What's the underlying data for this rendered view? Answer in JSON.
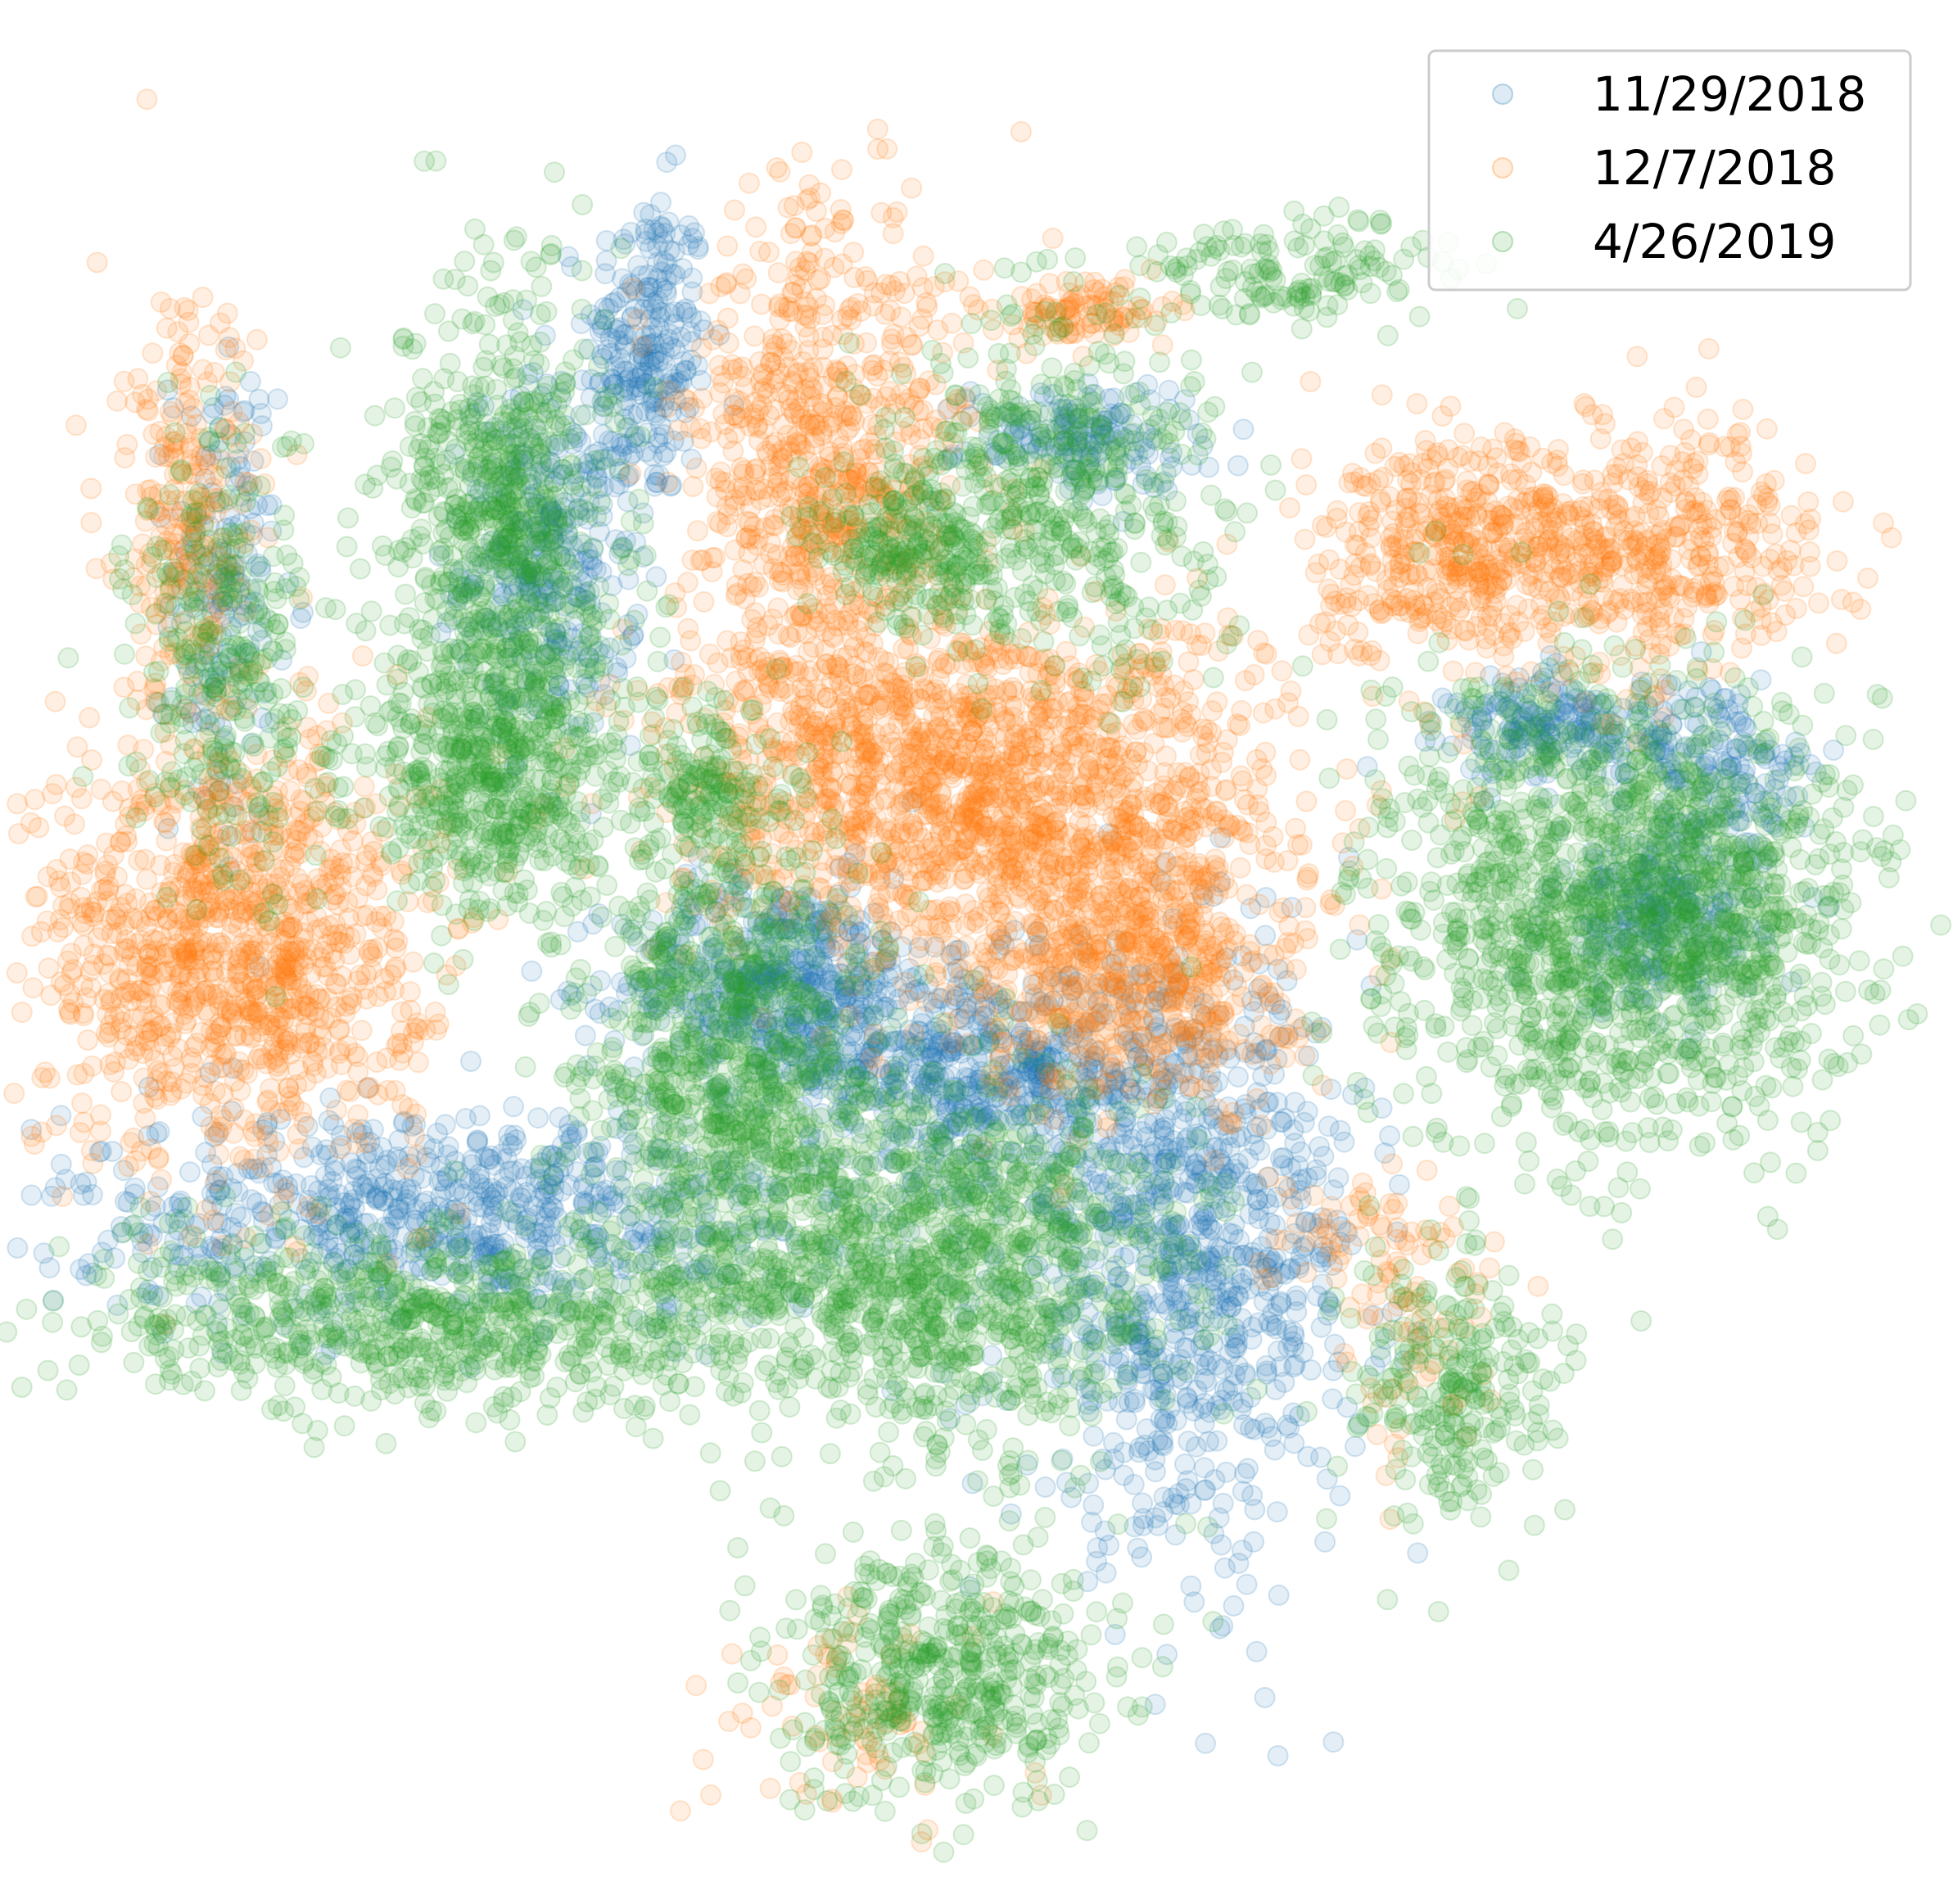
{
  "chart_data": {
    "type": "scatter",
    "title": "",
    "xlabel": "",
    "ylabel": "",
    "axes_visible": false,
    "grid": false,
    "legend_position": "top-right",
    "point_alpha": 0.12,
    "series": [
      {
        "name": "11/29/2018",
        "color": "#1f77b4",
        "clusters": [
          {
            "cx": -0.36,
            "cy": 0.7,
            "sx": 0.035,
            "sy": 0.09,
            "n": 240
          },
          {
            "cx": -0.47,
            "cy": 0.46,
            "sx": 0.05,
            "sy": 0.1,
            "n": 320
          },
          {
            "cx": -0.84,
            "cy": 0.42,
            "sx": 0.03,
            "sy": 0.14,
            "n": 160
          },
          {
            "cx": -0.21,
            "cy": -0.02,
            "sx": 0.09,
            "sy": 0.06,
            "n": 500
          },
          {
            "cx": 0.02,
            "cy": -0.12,
            "sx": 0.1,
            "sy": 0.06,
            "n": 520
          },
          {
            "cx": -0.58,
            "cy": -0.28,
            "sx": 0.22,
            "sy": 0.06,
            "n": 750
          },
          {
            "cx": 0.25,
            "cy": -0.33,
            "sx": 0.1,
            "sy": 0.16,
            "n": 900
          },
          {
            "cx": 0.13,
            "cy": 0.6,
            "sx": 0.07,
            "sy": 0.03,
            "n": 150
          },
          {
            "cx": 0.67,
            "cy": 0.27,
            "sx": 0.06,
            "sy": 0.03,
            "n": 200
          },
          {
            "cx": 0.78,
            "cy": 0.05,
            "sx": 0.06,
            "sy": 0.05,
            "n": 230
          },
          {
            "cx": 0.86,
            "cy": 0.22,
            "sx": 0.05,
            "sy": 0.05,
            "n": 150
          }
        ]
      },
      {
        "name": "12/7/2018",
        "color": "#ff7f0e",
        "clusters": [
          {
            "cx": -0.83,
            "cy": 0.02,
            "sx": 0.11,
            "sy": 0.12,
            "n": 1100
          },
          {
            "cx": 0.02,
            "cy": 0.2,
            "sx": 0.17,
            "sy": 0.1,
            "n": 1500
          },
          {
            "cx": 0.19,
            "cy": 0.0,
            "sx": 0.09,
            "sy": 0.08,
            "n": 600
          },
          {
            "cx": -0.16,
            "cy": 0.55,
            "sx": 0.08,
            "sy": 0.16,
            "n": 800
          },
          {
            "cx": -0.88,
            "cy": 0.48,
            "sx": 0.04,
            "sy": 0.13,
            "n": 260
          },
          {
            "cx": 0.54,
            "cy": 0.47,
            "sx": 0.07,
            "sy": 0.06,
            "n": 350
          },
          {
            "cx": 0.76,
            "cy": 0.47,
            "sx": 0.1,
            "sy": 0.07,
            "n": 500
          },
          {
            "cx": 0.14,
            "cy": 0.74,
            "sx": 0.05,
            "sy": 0.02,
            "n": 100
          },
          {
            "cx": 0.45,
            "cy": -0.3,
            "sx": 0.06,
            "sy": 0.04,
            "n": 60
          },
          {
            "cx": -0.12,
            "cy": -0.85,
            "sx": 0.08,
            "sy": 0.06,
            "n": 80
          },
          {
            "cx": 0.5,
            "cy": -0.41,
            "sx": 0.05,
            "sy": 0.07,
            "n": 60
          }
        ]
      },
      {
        "name": "4/26/2019",
        "color": "#2ca02c",
        "clusters": [
          {
            "cx": -0.52,
            "cy": 0.5,
            "sx": 0.06,
            "sy": 0.14,
            "n": 700
          },
          {
            "cx": -0.53,
            "cy": 0.22,
            "sx": 0.08,
            "sy": 0.08,
            "n": 600
          },
          {
            "cx": -0.84,
            "cy": 0.34,
            "sx": 0.05,
            "sy": 0.12,
            "n": 300
          },
          {
            "cx": -0.27,
            "cy": -0.12,
            "sx": 0.08,
            "sy": 0.14,
            "n": 900
          },
          {
            "cx": -0.02,
            "cy": -0.34,
            "sx": 0.13,
            "sy": 0.11,
            "n": 1100
          },
          {
            "cx": -0.58,
            "cy": -0.4,
            "sx": 0.22,
            "sy": 0.05,
            "n": 800
          },
          {
            "cx": 0.66,
            "cy": 0.07,
            "sx": 0.1,
            "sy": 0.13,
            "n": 900
          },
          {
            "cx": 0.85,
            "cy": 0.06,
            "sx": 0.09,
            "sy": 0.12,
            "n": 700
          },
          {
            "cx": -0.03,
            "cy": -0.8,
            "sx": 0.09,
            "sy": 0.07,
            "n": 500
          },
          {
            "cx": 0.09,
            "cy": 0.53,
            "sx": 0.1,
            "sy": 0.1,
            "n": 500
          },
          {
            "cx": 0.55,
            "cy": -0.48,
            "sx": 0.06,
            "sy": 0.08,
            "n": 250
          },
          {
            "cx": 0.35,
            "cy": 0.79,
            "sx": 0.1,
            "sy": 0.03,
            "n": 150
          },
          {
            "cx": -0.06,
            "cy": 0.47,
            "sx": 0.05,
            "sy": 0.04,
            "n": 200
          },
          {
            "cx": -0.3,
            "cy": 0.2,
            "sx": 0.04,
            "sy": 0.05,
            "n": 150
          }
        ]
      }
    ]
  }
}
